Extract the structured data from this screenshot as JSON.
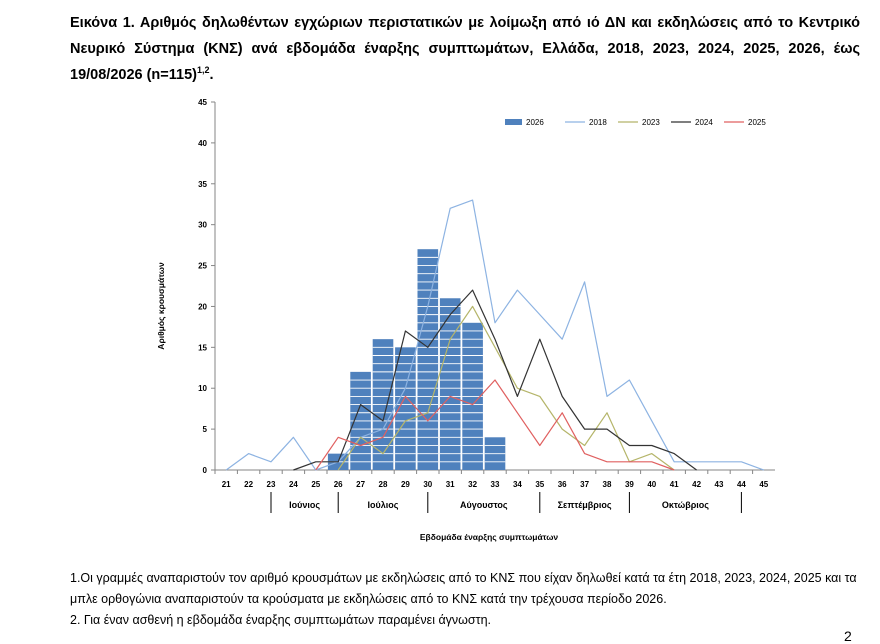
{
  "title": {
    "text": "Εικόνα 1. Αριθμός δηλωθέντων εγχώριων περιστατικών με λοίμωξη από ιό ΔΝ και εκδηλώσεις από το Κεντρικό Νευρικό Σύστημα (ΚΝΣ) ανά εβδομάδα έναρξης συμπτωμάτων, Ελλάδα, 2018, 2023, 2024, 2025, 2026, έως 19/08/2026 (n=115)",
    "superscript": "1,2",
    "end": "."
  },
  "chart_data": {
    "type": "bar",
    "title": "",
    "xlabel": "Εβδομάδα έναρξης συμπτωμάτων",
    "ylabel": "Αριθμός κρουσμάτων",
    "ylim": [
      0,
      45
    ],
    "yticks": [
      "0",
      "5",
      "10",
      "15",
      "20",
      "25",
      "30",
      "35",
      "40",
      "45"
    ],
    "categories": [
      "21",
      "22",
      "23",
      "24",
      "25",
      "26",
      "27",
      "28",
      "29",
      "30",
      "31",
      "32",
      "33",
      "34",
      "35",
      "36",
      "37",
      "38",
      "39",
      "40",
      "41",
      "42",
      "43",
      "44",
      "45"
    ],
    "months": [
      {
        "label": "Ιούνιος",
        "from": 23,
        "to": 26
      },
      {
        "label": "Ιούλιος",
        "from": 26,
        "to": 30
      },
      {
        "label": "Αύγουστος",
        "from": 30,
        "to": 35
      },
      {
        "label": "Σεπτέμβριος",
        "from": 35,
        "to": 39
      },
      {
        "label": "Οκτώβριος",
        "from": 39,
        "to": 44
      }
    ],
    "legend_position": "top-right",
    "grid": false,
    "bars": {
      "name": "2026",
      "color": "#4f81bd",
      "values": [
        0,
        0,
        0,
        0,
        0,
        2,
        12,
        16,
        15,
        27,
        21,
        18,
        4,
        0,
        0,
        0,
        0,
        0,
        0,
        0,
        0,
        0,
        0,
        0,
        0
      ]
    },
    "series": [
      {
        "name": "2018",
        "color": "#8db3e2",
        "values": [
          0,
          2,
          1,
          4,
          0,
          1,
          4,
          5,
          10,
          20,
          32,
          33,
          18,
          22,
          19,
          16,
          23,
          9,
          11,
          6,
          1,
          1,
          1,
          1,
          0
        ]
      },
      {
        "name": "2023",
        "color": "#b5b56a",
        "values": [
          null,
          null,
          null,
          null,
          null,
          0,
          4,
          2,
          6,
          7,
          16,
          20,
          15,
          10,
          9,
          5,
          3,
          7,
          1,
          2,
          0,
          null,
          null,
          null,
          null
        ]
      },
      {
        "name": "2024",
        "color": "#333333",
        "values": [
          null,
          null,
          null,
          0,
          1,
          1,
          8,
          6,
          17,
          15,
          19,
          22,
          16,
          9,
          16,
          9,
          5,
          5,
          3,
          3,
          2,
          0,
          null,
          null,
          null
        ]
      },
      {
        "name": "2025",
        "color": "#e06060",
        "values": [
          null,
          null,
          null,
          null,
          0,
          4,
          3,
          4,
          9,
          6,
          9,
          8,
          11,
          7,
          3,
          7,
          2,
          1,
          1,
          1,
          0,
          null,
          null,
          null,
          null
        ]
      }
    ]
  },
  "notes": [
    "1.Οι γραμμές αναπαριστούν τον αριθμό κρουσμάτων με εκδηλώσεις από το ΚΝΣ που είχαν δηλωθεί κατά τα έτη 2018, 2023, 2024, 2025 και τα μπλε ορθογώνια αναπαριστούν τα κρούσματα με εκδηλώσεις από το ΚΝΣ κατά την τρέχουσα περίοδο 2026.",
    "2. Για έναν ασθενή η εβδομάδα έναρξης συμπτωμάτων παραμένει άγνωστη."
  ],
  "page_number": "2"
}
